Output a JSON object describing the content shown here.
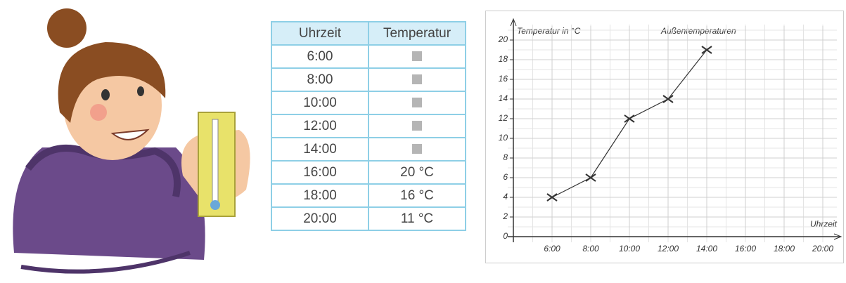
{
  "table": {
    "header": [
      "Uhrzeit",
      "Temperatur"
    ],
    "rows": [
      [
        "6:00",
        null
      ],
      [
        "8:00",
        null
      ],
      [
        "10:00",
        null
      ],
      [
        "12:00",
        null
      ],
      [
        "14:00",
        null
      ],
      [
        "16:00",
        "20 °C"
      ],
      [
        "18:00",
        "16 °C"
      ],
      [
        "20:00",
        "11 °C"
      ]
    ]
  },
  "chart_data": {
    "type": "line",
    "title": "Außentemperaturen",
    "y_label": "Temperatur in °C",
    "x_label": "Uhrzeit",
    "categories": [
      "6:00",
      "8:00",
      "10:00",
      "12:00",
      "14:00",
      "16:00",
      "18:00",
      "20:00"
    ],
    "values": [
      4,
      6,
      12,
      14,
      19,
      null,
      null,
      null
    ],
    "color": "#333333",
    "ylim": [
      0,
      20
    ],
    "yticks": [
      0,
      2,
      4,
      6,
      8,
      10,
      12,
      14,
      16,
      18,
      20
    ],
    "grid": true
  }
}
